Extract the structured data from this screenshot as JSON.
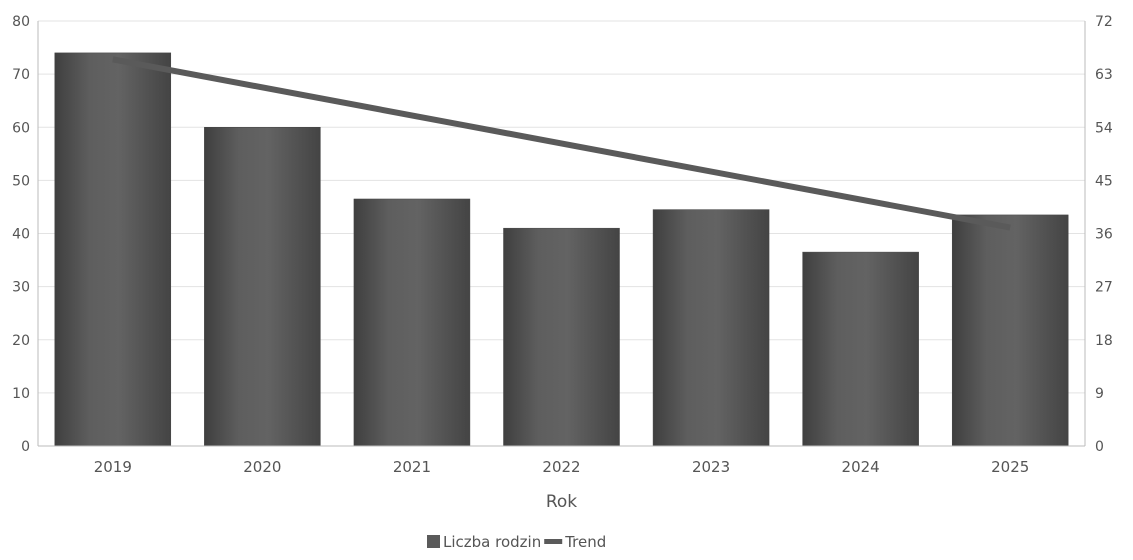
{
  "chart_data": {
    "type": "bar",
    "categories": [
      "2019",
      "2020",
      "2021",
      "2022",
      "2023",
      "2024",
      "2025"
    ],
    "series": [
      {
        "name": "Liczba rodzin",
        "type": "bar",
        "axis": "left",
        "color": "#5a5a5a",
        "values": [
          74,
          60,
          46.5,
          41,
          44.5,
          36.5,
          43.5
        ]
      },
      {
        "name": "Trend",
        "type": "line",
        "axis": "right",
        "color": "#5a5a5a",
        "values": [
          65.5,
          null,
          null,
          null,
          null,
          null,
          37
        ]
      }
    ],
    "xlabel": "Rok",
    "ylabel": "",
    "ylim": [
      0,
      80
    ],
    "yticks": [
      "0",
      "10",
      "20",
      "30",
      "40",
      "50",
      "60",
      "70",
      "80"
    ],
    "y2lim": [
      0,
      72
    ],
    "y2ticks": [
      "0",
      "9",
      "18",
      "27",
      "36",
      "45",
      "54",
      "63",
      "72"
    ],
    "grid": true,
    "legend_position": "bottom-center",
    "colors": {
      "bar": "#5a5a5a",
      "bar_dark": "#444444",
      "line": "#5a5a5a",
      "grid": "#e3e3e3",
      "axis": "#bbbbbb",
      "text": "#555555"
    }
  }
}
